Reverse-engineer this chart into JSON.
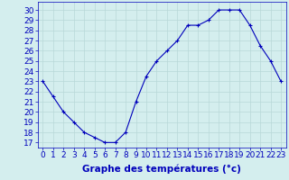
{
  "hours": [
    0,
    1,
    2,
    3,
    4,
    5,
    6,
    7,
    8,
    9,
    10,
    11,
    12,
    13,
    14,
    15,
    16,
    17,
    18,
    19,
    20,
    21,
    22,
    23
  ],
  "temps": [
    23.0,
    21.5,
    20.0,
    19.0,
    18.0,
    17.5,
    17.0,
    17.0,
    18.0,
    21.0,
    23.5,
    25.0,
    26.0,
    27.0,
    28.5,
    28.5,
    29.0,
    30.0,
    30.0,
    30.0,
    28.5,
    26.5,
    25.0,
    23.0
  ],
  "line_color": "#0000bb",
  "marker": "+",
  "bg_color": "#d4eeee",
  "grid_color": "#b8d8d8",
  "xlabel": "Graphe des températures (°c)",
  "ylabel_ticks": [
    17,
    18,
    19,
    20,
    21,
    22,
    23,
    24,
    25,
    26,
    27,
    28,
    29,
    30
  ],
  "ylim": [
    16.5,
    30.8
  ],
  "xlim": [
    -0.5,
    23.5
  ],
  "axis_label_color": "#0000bb",
  "tick_label_color": "#0000bb",
  "xlabel_fontsize": 7.5,
  "tick_fontsize": 6.5,
  "xlabel_bold": true
}
